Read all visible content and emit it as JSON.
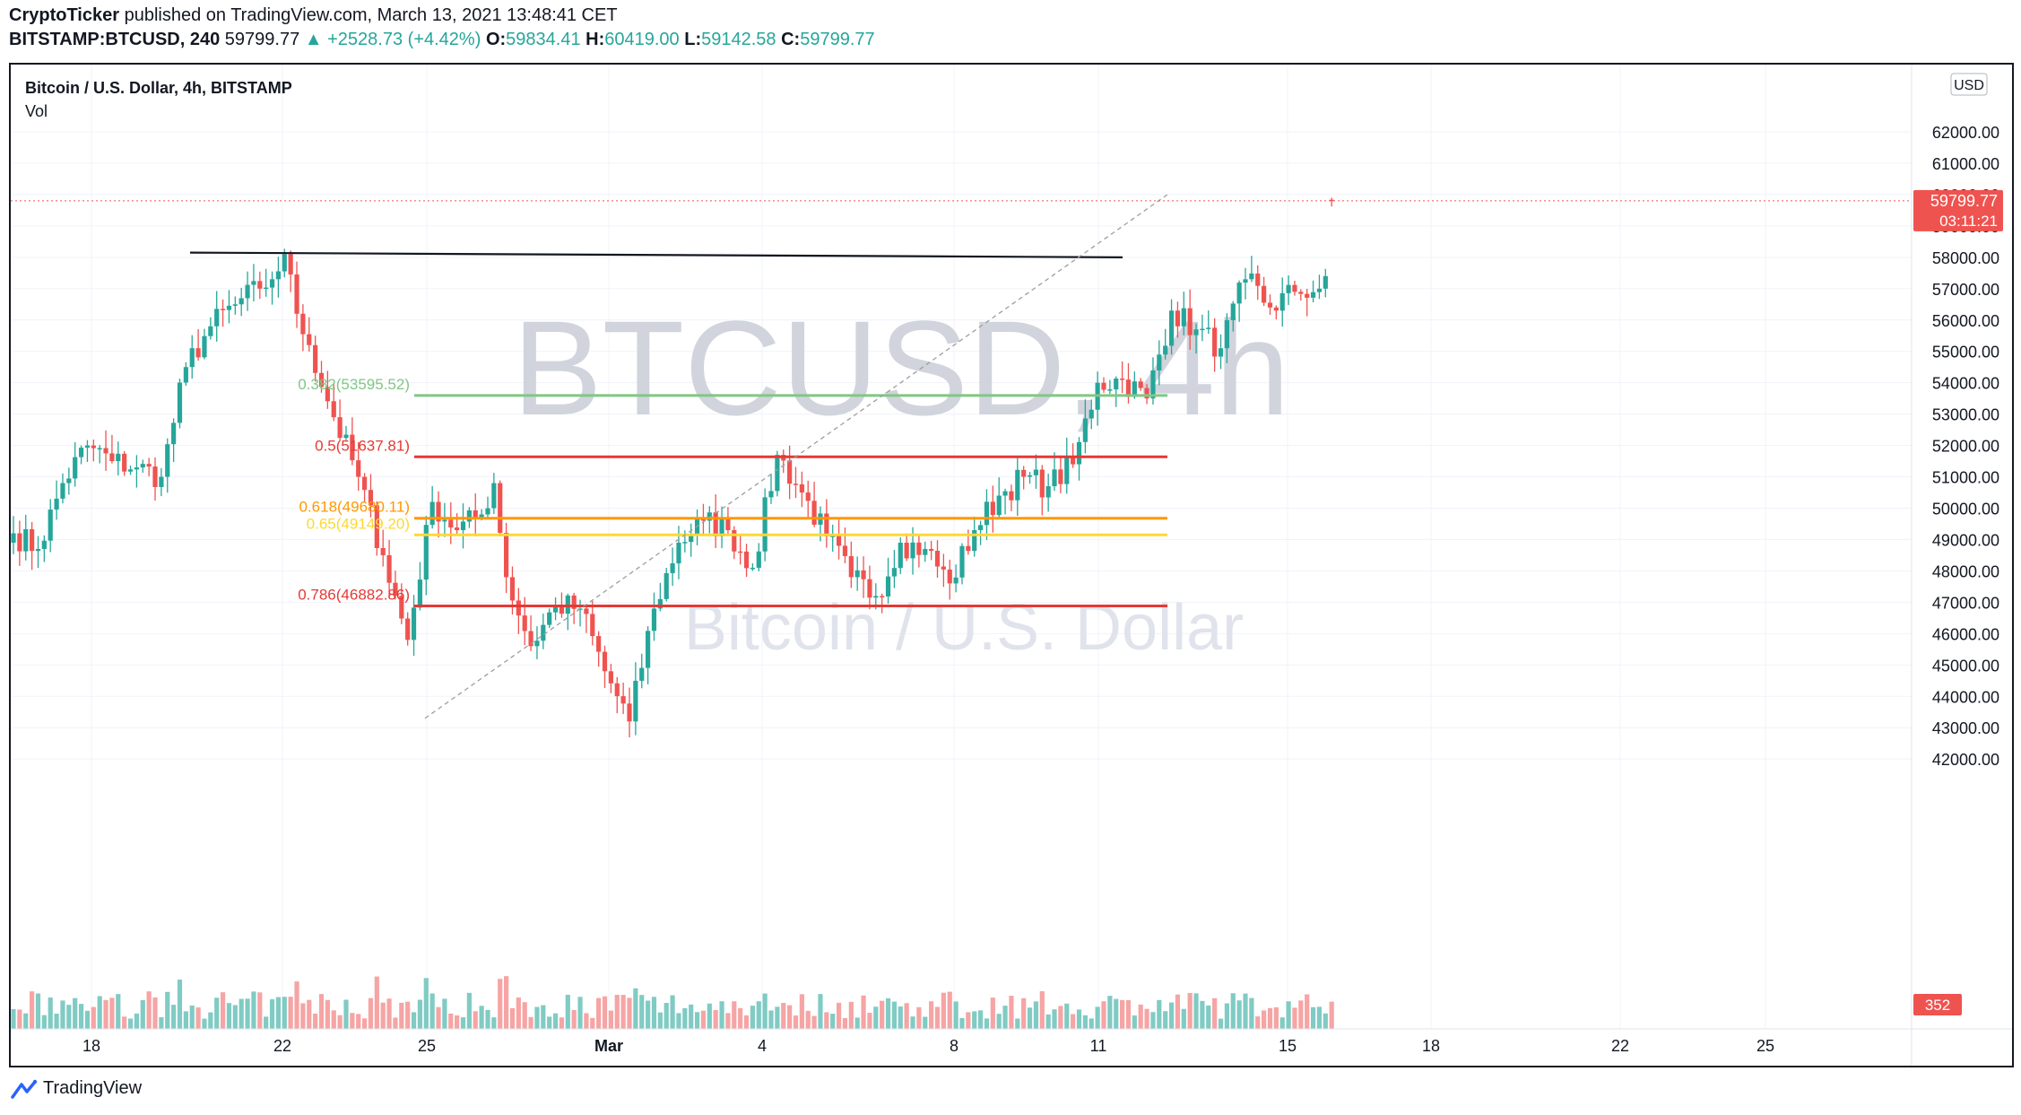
{
  "header": {
    "author": "CryptoTicker",
    "published_text": "published on TradingView.com, March 13, 2021 13:48:41 CET",
    "symbol": "BITSTAMP:BTCUSD, 240",
    "last": "59799.77",
    "change_arrow": "▲",
    "change": "+2528.73 (+4.42%)",
    "open_label": "O:",
    "open": "59834.41",
    "high_label": "H:",
    "high": "60419.00",
    "low_label": "L:",
    "low": "59142.58",
    "close_label": "C:",
    "close": "59799.77"
  },
  "legend": {
    "title": "Bitcoin / U.S. Dollar, 4h, BITSTAMP",
    "volume": "Vol"
  },
  "watermark": {
    "main": "BTCUSD, 4h",
    "sub": "Bitcoin / U.S. Dollar"
  },
  "currency_badge": "USD",
  "price_tag": {
    "value": "59799.77",
    "countdown": "03:11:21"
  },
  "volume_tag": "352",
  "footer": {
    "brand": "TradingView"
  },
  "colors": {
    "up": "#26a69a",
    "down": "#ef5350",
    "vol_up": "#80cbc4",
    "vol_down": "#f6a4a4",
    "fib_382": "#81c784",
    "fib_50": "#e53935",
    "fib_618": "#ff9800",
    "fib_65": "#fdd835",
    "fib_786": "#e53935",
    "resistance": "#131722",
    "trendline": "#9e9e9e"
  },
  "chart_data": {
    "type": "candlestick",
    "title": "Bitcoin / U.S. Dollar, 4h, BITSTAMP",
    "ylim": [
      41500,
      62500
    ],
    "y_ticks": [
      42000,
      43000,
      44000,
      45000,
      46000,
      47000,
      48000,
      49000,
      50000,
      51000,
      52000,
      53000,
      54000,
      55000,
      56000,
      57000,
      58000,
      59000,
      60000,
      61000,
      62000
    ],
    "x_ticks": [
      "18",
      "22",
      "25",
      "Mar",
      "4",
      "8",
      "11",
      "15",
      "18",
      "22",
      "25"
    ],
    "close_anchors": [
      [
        0,
        49200
      ],
      [
        4,
        48700
      ],
      [
        8,
        50800
      ],
      [
        12,
        52000
      ],
      [
        16,
        51500
      ],
      [
        20,
        51300
      ],
      [
        24,
        51000
      ],
      [
        28,
        54500
      ],
      [
        32,
        55800
      ],
      [
        36,
        56500
      ],
      [
        40,
        57000
      ],
      [
        42,
        57300
      ],
      [
        44,
        58100
      ],
      [
        46,
        56200
      ],
      [
        48,
        55200
      ],
      [
        52,
        52900
      ],
      [
        56,
        51000
      ],
      [
        60,
        48500
      ],
      [
        64,
        45800
      ],
      [
        68,
        50200
      ],
      [
        72,
        49300
      ],
      [
        76,
        49800
      ],
      [
        78,
        50800
      ],
      [
        80,
        47800
      ],
      [
        84,
        45600
      ],
      [
        88,
        46900
      ],
      [
        92,
        46800
      ],
      [
        96,
        44800
      ],
      [
        100,
        43200
      ],
      [
        104,
        46800
      ],
      [
        108,
        48900
      ],
      [
        112,
        49600
      ],
      [
        116,
        49300
      ],
      [
        120,
        48100
      ],
      [
        124,
        51700
      ],
      [
        128,
        50500
      ],
      [
        132,
        49100
      ],
      [
        136,
        47800
      ],
      [
        140,
        47200
      ],
      [
        144,
        48900
      ],
      [
        148,
        48700
      ],
      [
        152,
        47600
      ],
      [
        156,
        49300
      ],
      [
        160,
        50400
      ],
      [
        164,
        51000
      ],
      [
        168,
        50700
      ],
      [
        172,
        51400
      ],
      [
        176,
        54000
      ],
      [
        180,
        54100
      ],
      [
        184,
        53500
      ],
      [
        188,
        56300
      ],
      [
        192,
        55700
      ],
      [
        196,
        55100
      ],
      [
        200,
        57300
      ],
      [
        204,
        56400
      ],
      [
        208,
        56900
      ],
      [
        212,
        57000
      ],
      [
        213,
        57400
      ],
      [
        214,
        59800
      ]
    ],
    "volume_range": [
      0,
      500
    ],
    "horizontal_levels": [
      {
        "label": "0.382(53595.52)",
        "price": 53595.52,
        "color": "#81c784"
      },
      {
        "label": "0.5(51637.81)",
        "price": 51637.81,
        "color": "#e53935"
      },
      {
        "label": "0.618(49680.11)",
        "price": 49680.11,
        "color": "#ff9800"
      },
      {
        "label": "0.65(49149.20)",
        "price": 49149.2,
        "color": "#fdd835"
      },
      {
        "label": "0.786(46882.86)",
        "price": 46882.86,
        "color": "#e53935"
      }
    ],
    "resistance_line": {
      "price_start": 58150,
      "price_end": 58000
    },
    "trendline": {
      "from_price": 43300,
      "to_price": 60000
    },
    "last_price": 59799.77,
    "grid": true
  }
}
